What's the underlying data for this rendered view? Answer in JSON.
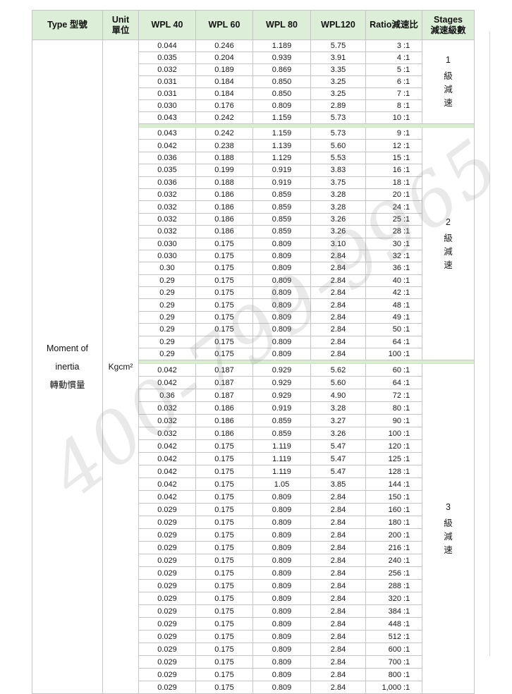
{
  "header": {
    "type": "Type 型號",
    "unit_lines": [
      "Unit",
      "單位"
    ],
    "wpl40": "WPL 40",
    "wpl60": "WPL 60",
    "wpl80": "WPL 80",
    "wpl120": "WPL120",
    "ratio": "Ratio減速比",
    "stages_lines": [
      "Stages",
      "減速級數"
    ]
  },
  "type_cell": {
    "lines": [
      "Moment of",
      "inertia",
      "轉動慣量"
    ]
  },
  "unit_cell": {
    "value": "Kgcm²"
  },
  "ratio_suffix": ":1",
  "watermark": {
    "text": "400-799-9965"
  },
  "colors": {
    "header_bg": "#ddeed8",
    "separator_bg": "#d9edd0",
    "border": "#c4c6c4",
    "text": "#151515"
  },
  "row_format": [
    "wpl40",
    "wpl60",
    "wpl80",
    "wpl120",
    "ratio"
  ],
  "sections": [
    {
      "stage_no": "1",
      "stage_label": "級減速",
      "rows": [
        [
          "0.044",
          "0.246",
          "1.189",
          "5.75",
          "3"
        ],
        [
          "0.035",
          "0.204",
          "0.939",
          "3.91",
          "4"
        ],
        [
          "0.032",
          "0.189",
          "0.869",
          "3.35",
          "5"
        ],
        [
          "0.031",
          "0.184",
          "0.850",
          "3.25",
          "6"
        ],
        [
          "0.031",
          "0.184",
          "0.850",
          "3.25",
          "7"
        ],
        [
          "0.030",
          "0.176",
          "0.809",
          "2.89",
          "8"
        ],
        [
          "0.043",
          "0.242",
          "1.159",
          "5.73",
          "10"
        ]
      ]
    },
    {
      "stage_no": "2",
      "stage_label": "級減速",
      "rows": [
        [
          "0.043",
          "0.242",
          "1.159",
          "5.73",
          "9"
        ],
        [
          "0.042",
          "0.238",
          "1.139",
          "5.60",
          "12"
        ],
        [
          "0.036",
          "0.188",
          "1.129",
          "5.53",
          "15"
        ],
        [
          "0.035",
          "0.199",
          "0.919",
          "3.83",
          "16"
        ],
        [
          "0.036",
          "0.188",
          "0.919",
          "3.75",
          "18"
        ],
        [
          "0.032",
          "0.186",
          "0.859",
          "3.28",
          "20"
        ],
        [
          "0.032",
          "0.186",
          "0.859",
          "3.28",
          "24"
        ],
        [
          "0.032",
          "0.186",
          "0.859",
          "3.26",
          "25"
        ],
        [
          "0.032",
          "0.186",
          "0.859",
          "3.26",
          "28"
        ],
        [
          "0.030",
          "0.175",
          "0.809",
          "3.10",
          "30"
        ],
        [
          "0.030",
          "0.175",
          "0.809",
          "2.84",
          "32"
        ],
        [
          "0.30",
          "0.175",
          "0.809",
          "2.84",
          "36"
        ],
        [
          "0.29",
          "0.175",
          "0.809",
          "2.84",
          "40"
        ],
        [
          "0.29",
          "0.175",
          "0.809",
          "2.84",
          "42"
        ],
        [
          "0.29",
          "0.175",
          "0.809",
          "2.84",
          "48"
        ],
        [
          "0.29",
          "0.175",
          "0.809",
          "2.84",
          "49"
        ],
        [
          "0.29",
          "0.175",
          "0.809",
          "2.84",
          "50"
        ],
        [
          "0.29",
          "0.175",
          "0.809",
          "2.84",
          "64"
        ],
        [
          "0.29",
          "0.175",
          "0.809",
          "2.84",
          "100"
        ]
      ]
    },
    {
      "stage_no": "3",
      "stage_label": "級減速",
      "rows": [
        [
          "0.042",
          "0.187",
          "0.929",
          "5.62",
          "60"
        ],
        [
          "0.042",
          "0.187",
          "0.929",
          "5.60",
          "64"
        ],
        [
          "0.36",
          "0.187",
          "0.929",
          "4.90",
          "72"
        ],
        [
          "0.032",
          "0.186",
          "0.919",
          "3.28",
          "80"
        ],
        [
          "0.032",
          "0.186",
          "0.859",
          "3.27",
          "90"
        ],
        [
          "0.032",
          "0.186",
          "0.859",
          "3.26",
          "100"
        ],
        [
          "0.042",
          "0.175",
          "1.119",
          "5.47",
          "120"
        ],
        [
          "0.042",
          "0.175",
          "1.119",
          "5.47",
          "125"
        ],
        [
          "0.042",
          "0.175",
          "1.119",
          "5.47",
          "128"
        ],
        [
          "0.042",
          "0.175",
          "1.05",
          "3.85",
          "144"
        ],
        [
          "0.042",
          "0.175",
          "0.809",
          "2.84",
          "150"
        ],
        [
          "0.029",
          "0.175",
          "0.809",
          "2.84",
          "160"
        ],
        [
          "0.029",
          "0.175",
          "0.809",
          "2.84",
          "180"
        ],
        [
          "0.029",
          "0.175",
          "0.809",
          "2.84",
          "200"
        ],
        [
          "0.029",
          "0.175",
          "0.809",
          "2.84",
          "216"
        ],
        [
          "0.029",
          "0.175",
          "0.809",
          "2.84",
          "240"
        ],
        [
          "0.029",
          "0.175",
          "0.809",
          "2.84",
          "256"
        ],
        [
          "0.029",
          "0.175",
          "0.809",
          "2.84",
          "288"
        ],
        [
          "0.029",
          "0.175",
          "0.809",
          "2.84",
          "320"
        ],
        [
          "0.029",
          "0.175",
          "0.809",
          "2.84",
          "384"
        ],
        [
          "0.029",
          "0.175",
          "0.809",
          "2.84",
          "448"
        ],
        [
          "0.029",
          "0.175",
          "0.809",
          "2.84",
          "512"
        ],
        [
          "0.029",
          "0.175",
          "0.809",
          "2.84",
          "600"
        ],
        [
          "0.029",
          "0.175",
          "0.809",
          "2.84",
          "700"
        ],
        [
          "0.029",
          "0.175",
          "0.809",
          "2.84",
          "800"
        ],
        [
          "0.029",
          "0.175",
          "0.809",
          "2.84",
          "1,000"
        ]
      ]
    }
  ]
}
